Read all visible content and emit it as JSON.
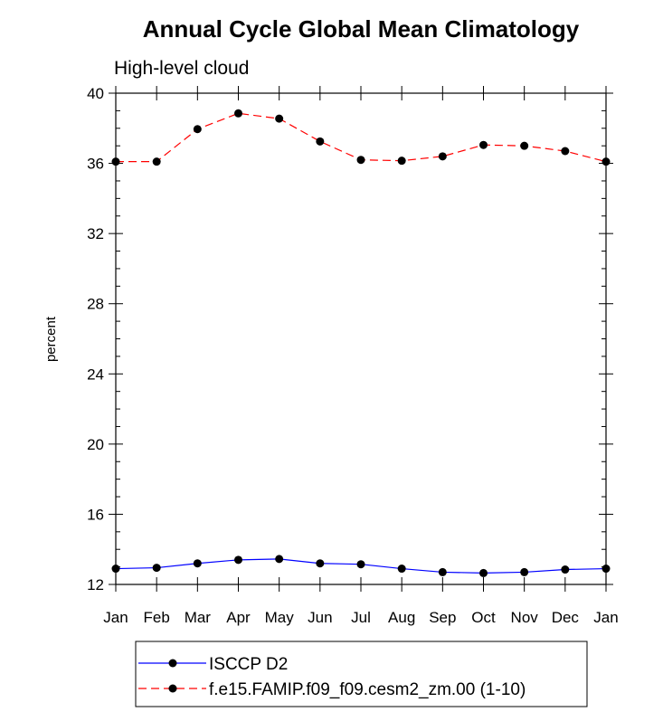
{
  "chart_data": {
    "type": "line",
    "title": "Annual Cycle Global Mean Climatology",
    "subtitle": "High-level cloud",
    "xlabel": "",
    "ylabel": "percent",
    "categories": [
      "Jan",
      "Feb",
      "Mar",
      "Apr",
      "May",
      "Jun",
      "Jul",
      "Aug",
      "Sep",
      "Oct",
      "Nov",
      "Dec",
      "Jan"
    ],
    "ylim": [
      12,
      40
    ],
    "yticks": [
      "12",
      "16",
      "20",
      "24",
      "28",
      "32",
      "36",
      "40"
    ],
    "grid": false,
    "legend_position": "bottom",
    "series": [
      {
        "name": "ISCCP D2",
        "color": "#0000ff",
        "linestyle": "solid",
        "marker": "circle",
        "values": [
          12.9,
          12.95,
          13.2,
          13.4,
          13.45,
          13.2,
          13.15,
          12.9,
          12.7,
          12.65,
          12.7,
          12.85,
          12.9
        ]
      },
      {
        "name": "f.e15.FAMIP.f09_f09.cesm2_zm.00 (1-10)",
        "color": "#ff0000",
        "linestyle": "dashed",
        "marker": "circle",
        "values": [
          36.1,
          36.1,
          37.95,
          38.85,
          38.55,
          37.25,
          36.2,
          36.15,
          36.4,
          37.05,
          37.0,
          36.7,
          36.1
        ]
      }
    ]
  }
}
